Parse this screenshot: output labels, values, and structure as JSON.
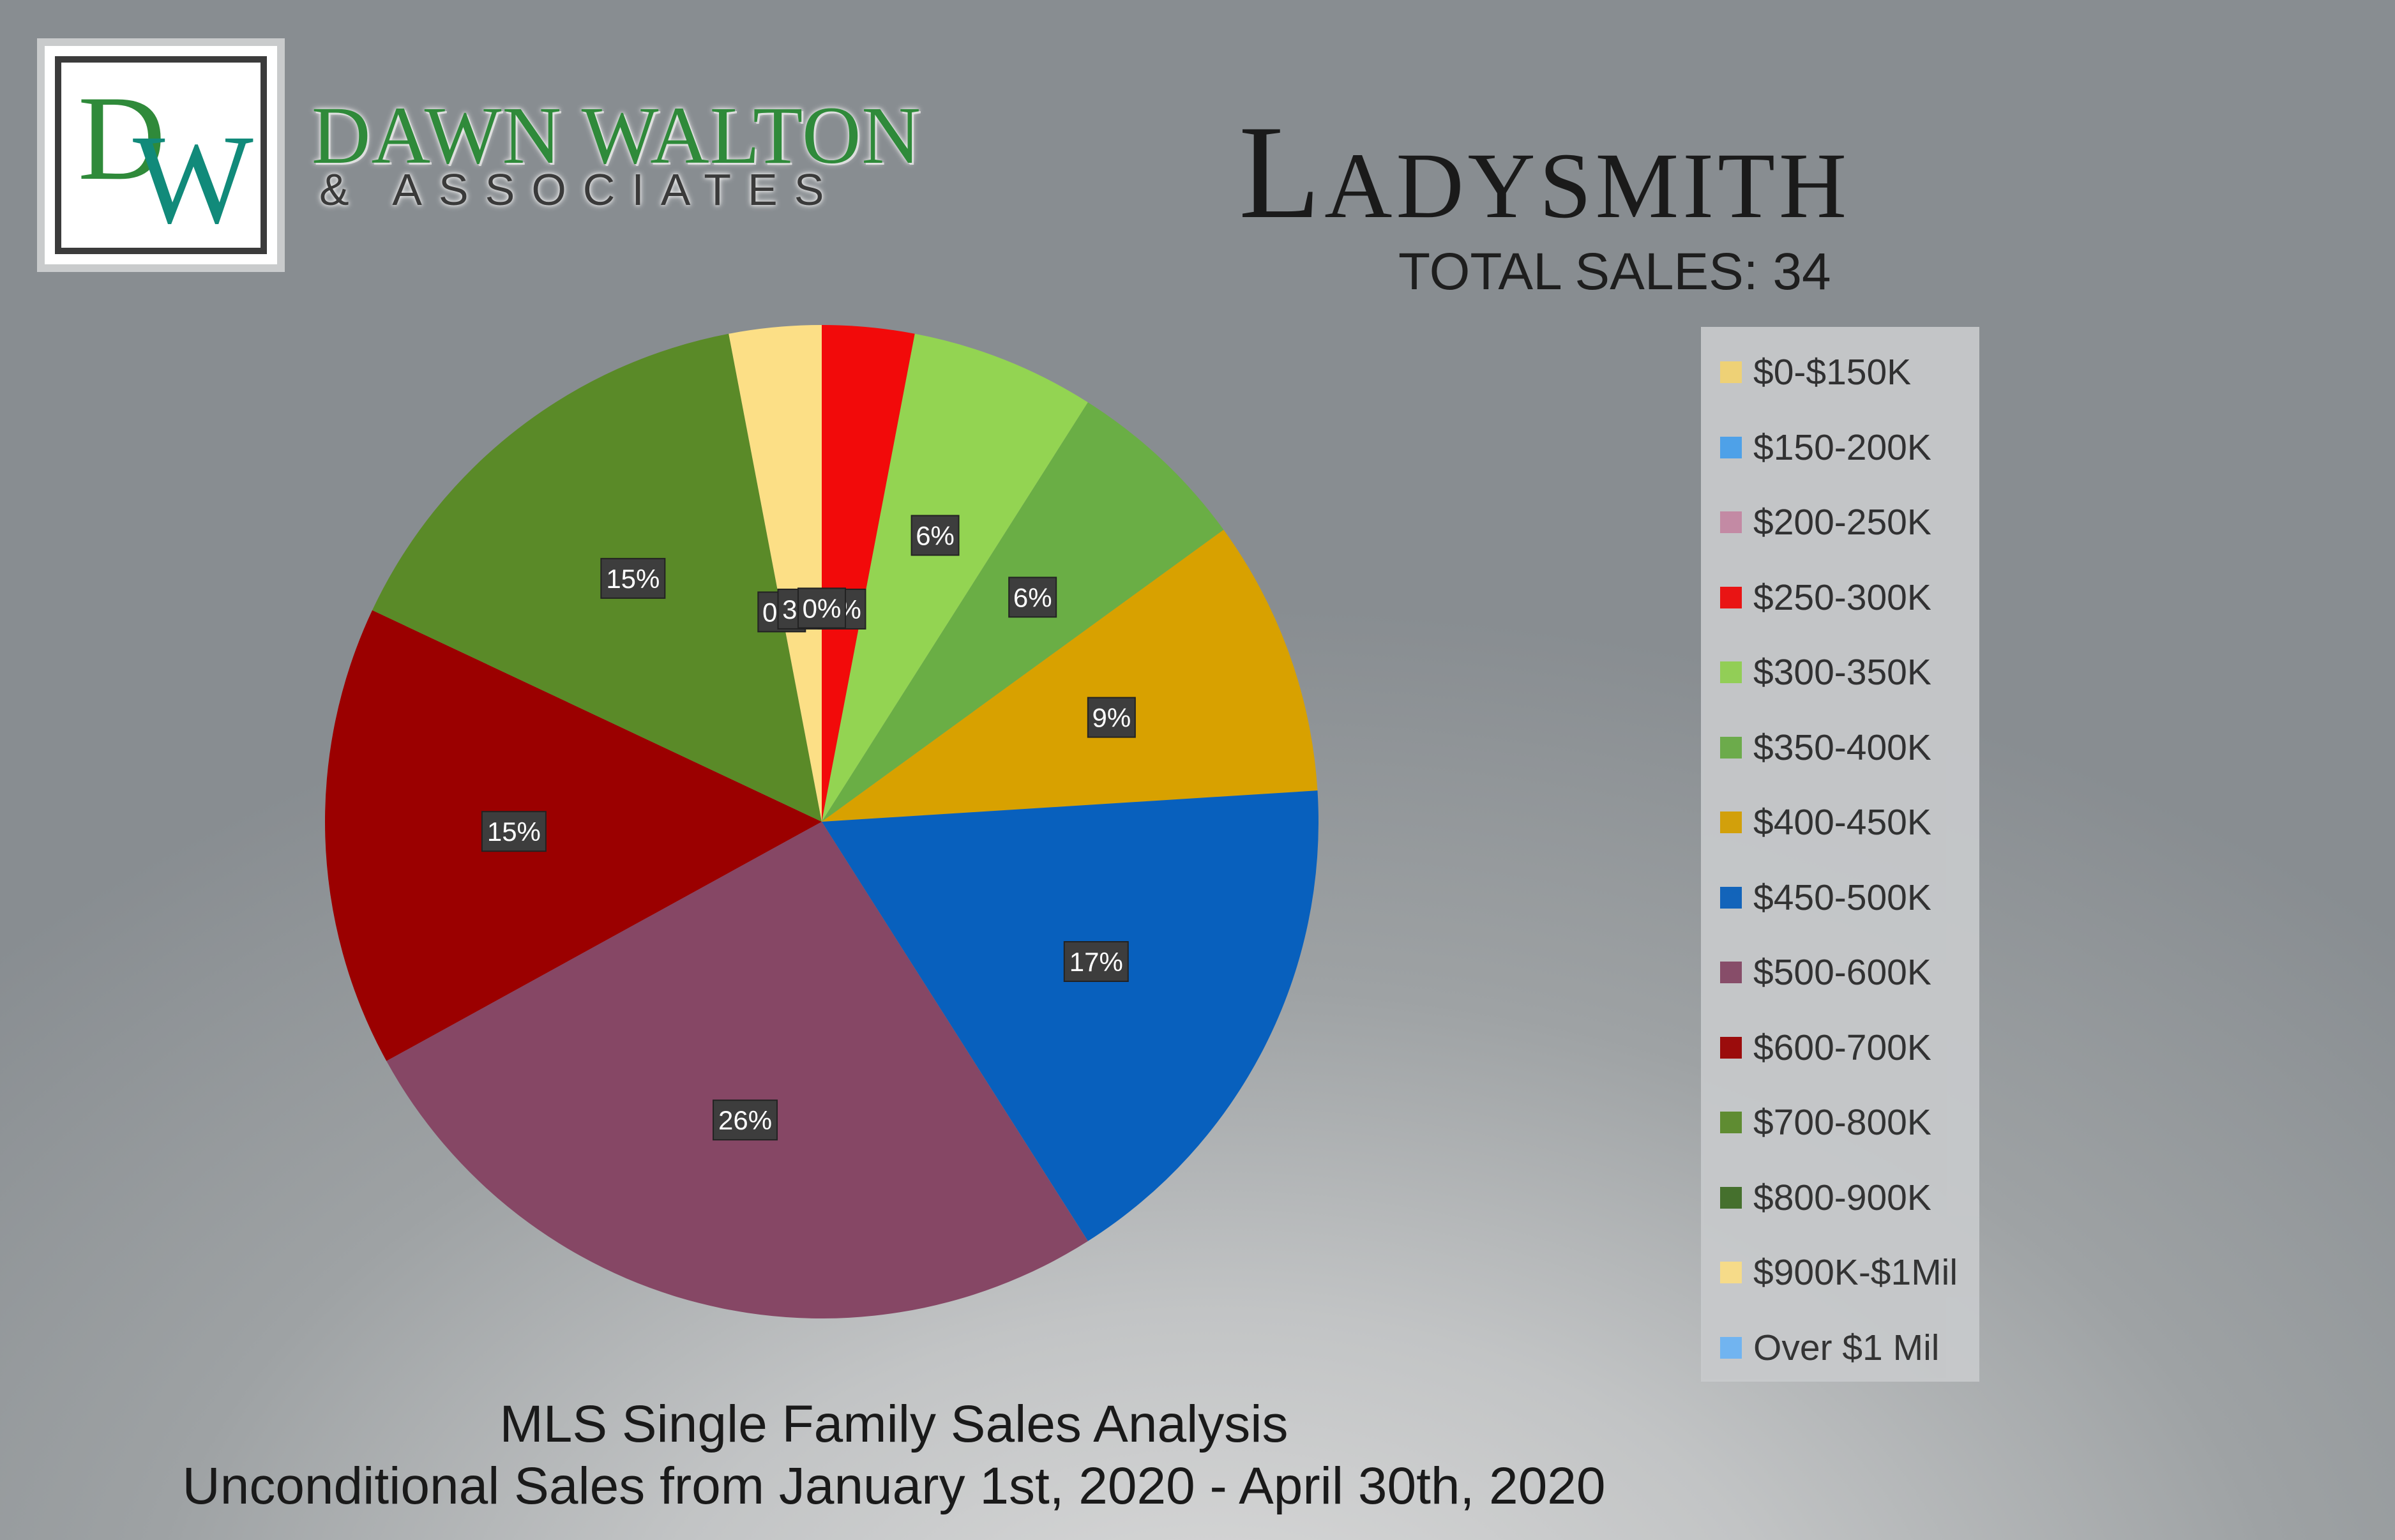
{
  "brand": {
    "logo_letter_1": "D",
    "logo_letter_2": "W",
    "name": "DAWN WALTON",
    "subtitle": "& ASSOCIATES"
  },
  "header": {
    "title": "Ladysmith",
    "total_sales": "TOTAL SALES: 34"
  },
  "footer": {
    "line1": "MLS Single Family Sales Analysis",
    "line2": "Unconditional Sales from January 1st, 2020 - April 30th, 2020"
  },
  "chart_data": {
    "type": "pie",
    "start_angle_deg": 0,
    "direction": "clockwise",
    "legend_position": "right",
    "slices": [
      {
        "label": "$0-$150K",
        "value": 0,
        "data_label": "0%",
        "color": "#f7d774"
      },
      {
        "label": "$150-200K",
        "value": 0,
        "data_label": "0%",
        "color": "#4aa3f0"
      },
      {
        "label": "$200-250K",
        "value": 0,
        "data_label": "0%",
        "color": "#c98aa6"
      },
      {
        "label": "$250-300K",
        "value": 3,
        "data_label": "3%",
        "color": "#f20a0a"
      },
      {
        "label": "$300-350K",
        "value": 6,
        "data_label": "6%",
        "color": "#93d452"
      },
      {
        "label": "$350-400K",
        "value": 6,
        "data_label": "6%",
        "color": "#6aae45"
      },
      {
        "label": "$400-450K",
        "value": 9,
        "data_label": "9%",
        "color": "#d8a100"
      },
      {
        "label": "$450-500K",
        "value": 17,
        "data_label": "17%",
        "color": "#0860bd"
      },
      {
        "label": "$500-600K",
        "value": 26,
        "data_label": "26%",
        "color": "#864765"
      },
      {
        "label": "$600-700K",
        "value": 15,
        "data_label": "15%",
        "color": "#9b0000"
      },
      {
        "label": "$700-800K",
        "value": 15,
        "data_label": "15%",
        "color": "#5a8a28"
      },
      {
        "label": "$800-900K",
        "value": 0,
        "data_label": "0%",
        "color": "#3d6b23"
      },
      {
        "label": "$900K-$1Mil",
        "value": 3,
        "data_label": "3%",
        "color": "#fcdf86"
      },
      {
        "label": "Over $1 Mil",
        "value": 0,
        "data_label": "0%",
        "color": "#6cb4f5"
      }
    ]
  }
}
